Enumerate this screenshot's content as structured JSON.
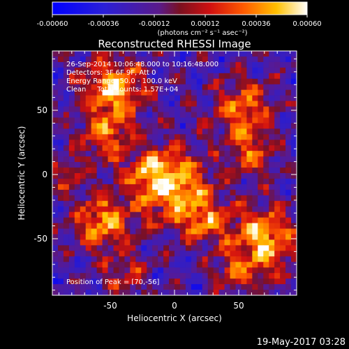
{
  "colorbar": {
    "ticks": [
      "-0.00060",
      "-0.00036",
      "-0.00012",
      "0.00012",
      "0.00036",
      "0.00060"
    ],
    "unit_label": "(photons cm⁻² s⁻¹ asec⁻²)"
  },
  "plot": {
    "title": "Reconstructed RHESSI Image",
    "info_lines": [
      "26-Sep-2014 10:06:48.000 to 10:16:48.000",
      "Detectors: 3F 6F 9F, Att 0",
      "Energy Range: 50.0 - 100.0 keV",
      "Clean     Total counts: 1.57E+04"
    ],
    "peak_label": "Position of Peak = [70,-56]",
    "xlabel": "Heliocentric X (arcsec)",
    "ylabel": "Heliocentric Y (arcsec)",
    "x_ticks": [
      "-50",
      "0",
      "50"
    ],
    "y_ticks": [
      "50",
      "0",
      "-50"
    ]
  },
  "footer": {
    "timestamp": "19-May-2017 03:28"
  },
  "colors": {
    "background": "#000000",
    "axes": "#ffffff"
  }
}
